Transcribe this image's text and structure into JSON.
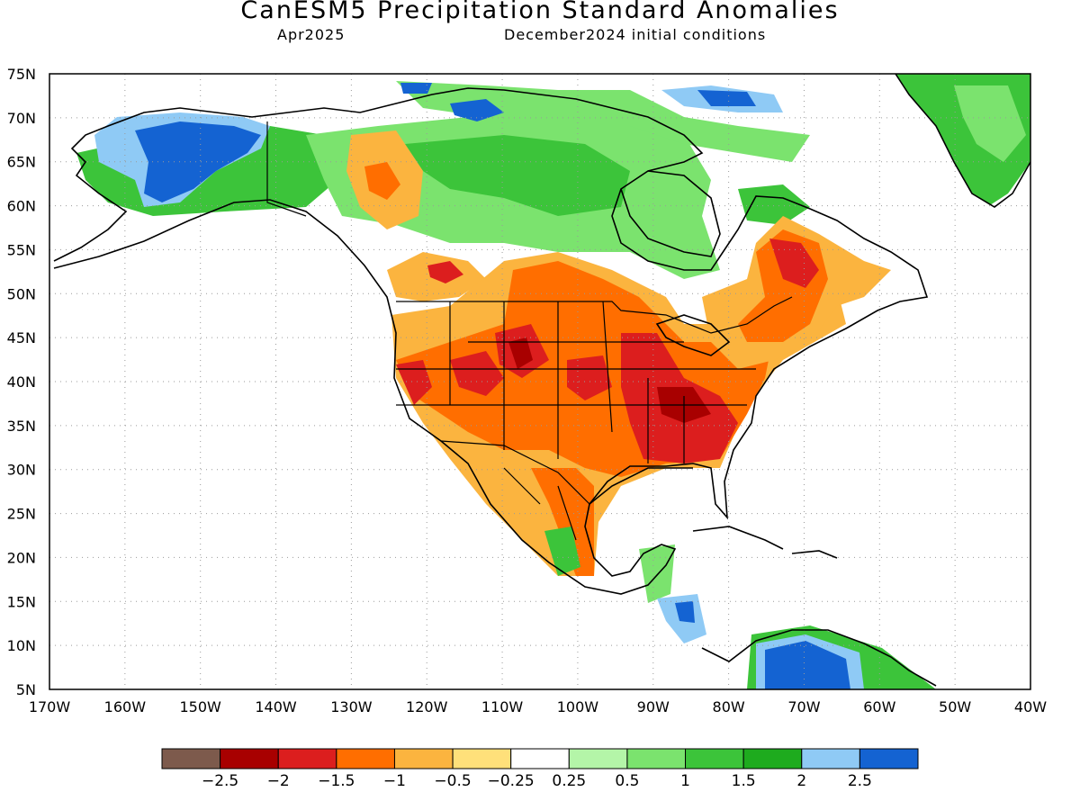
{
  "title": "CanESM5 Precipitation Standard Anomalies",
  "valid_month": "Apr2025",
  "init_conditions": "December2024 initial conditions",
  "map": {
    "lon_ticks": [
      "170W",
      "160W",
      "150W",
      "140W",
      "130W",
      "120W",
      "110W",
      "100W",
      "90W",
      "80W",
      "70W",
      "60W",
      "50W",
      "40W"
    ],
    "lat_ticks": [
      "75N",
      "70N",
      "65N",
      "60N",
      "55N",
      "50N",
      "45N",
      "40N",
      "35N",
      "30N",
      "25N",
      "20N",
      "15N",
      "10N",
      "5N"
    ],
    "lon_range": [
      -170,
      -40
    ],
    "lat_range": [
      5,
      75
    ],
    "grid": "dotted"
  },
  "colorbar": {
    "colors": [
      "#7d5a4c",
      "#a80000",
      "#dc1e1e",
      "#ff6e00",
      "#fbb43f",
      "#ffe07a",
      "#ffffff",
      "#b4f5a8",
      "#7be36e",
      "#3cc43a",
      "#1eab1e",
      "#8fcaf5",
      "#1463d2"
    ],
    "labels": [
      "-2.5",
      "-2",
      "-1.5",
      "-1",
      "-0.5",
      "-0.25",
      "0.25",
      "0.5",
      "1",
      "1.5",
      "2",
      "2.5"
    ]
  }
}
